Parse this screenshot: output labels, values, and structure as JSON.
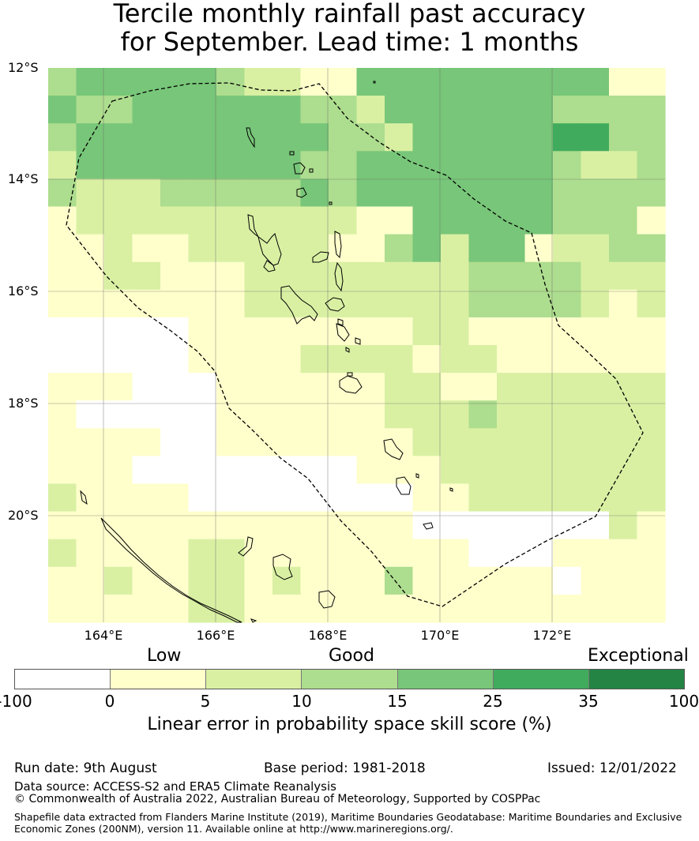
{
  "title": {
    "line1": "Tercile monthly rainfall past accuracy",
    "line2": "for September. Lead time: 1 months"
  },
  "map": {
    "lat_labels": [
      "12°S",
      "14°S",
      "16°S",
      "18°S",
      "20°S"
    ],
    "lon_labels": [
      "164°E",
      "166°E",
      "168°E",
      "170°E",
      "172°E"
    ]
  },
  "colorbar": {
    "category_labels": [
      "Low",
      "Good",
      "Exceptional"
    ],
    "ticks": [
      "-100",
      "0",
      "5",
      "10",
      "15",
      "25",
      "35",
      "100"
    ],
    "colors": [
      "#ffffff",
      "#ffffcc",
      "#d9f0a3",
      "#addd8e",
      "#78c679",
      "#41ab5d",
      "#238443"
    ],
    "label": "Linear error in probability space skill score (%)"
  },
  "footer": {
    "run_date": "Run date: 9th August",
    "base_period": "Base period: 1981-2018",
    "issued": "Issued: 12/01/2022",
    "data_source": "Data source: ACCESS-S2 and ERA5 Climate Reanalysis",
    "copyright": "© Commonwealth of Australia 2022, Australian Bureau of Meteorology, Supported by COSPPac",
    "shapefile_line1": "Shapefile data extracted from Flanders Marine Institute (2019), Maritime Boundaries Geodatabase: Maritime Boundaries and Exclusive",
    "shapefile_line2": "Economic Zones (200NM), version 11. Available online at http://www.marineregions.org/."
  },
  "grid": [
    "3444443221144444444411",
    "4334444443324444443333",
    "3444444444332444445533",
    "2444444443344444443223",
    "3222333334344444443333",
    "1222222222211444443331",
    "1121122222113424412233",
    "1122111222222223333222",
    "1111111222222223333212",
    "0000011111111221111111",
    "0000011112222122111111",
    "1110001111112211222222",
    "1000001111112223222222",
    "1111001111111222222222",
    "1110000000011122222222",
    "2111100000000112222222",
    "1111111111111000000021",
    "2111122111111110001111",
    "1121122121113111110111",
    "1111122111111111111111"
  ]
}
